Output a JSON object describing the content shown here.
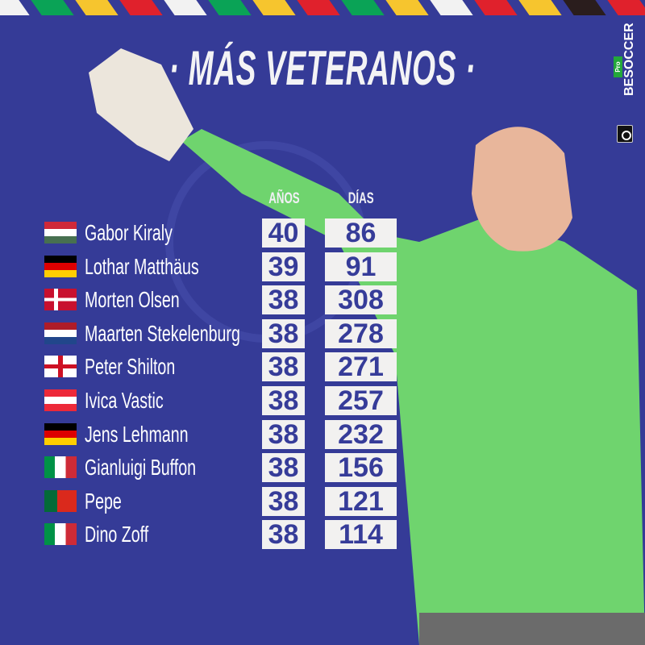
{
  "title": "· MÁS VETERANOS ·",
  "brand": {
    "name": "BESOCCER",
    "tag": "Pro"
  },
  "headers": {
    "years": "AÑOS",
    "days": "DÍAS"
  },
  "colors": {
    "background": "#353b97",
    "box": "#f2f1f0",
    "number": "#363c99",
    "jersey": "#6fd46e"
  },
  "players": [
    {
      "name": "Gabor Kiraly",
      "years": "40",
      "days": "86",
      "flag": "hungary"
    },
    {
      "name": "Lothar Matthäus",
      "years": "39",
      "days": "91",
      "flag": "germany"
    },
    {
      "name": "Morten Olsen",
      "years": "38",
      "days": "308",
      "flag": "denmark"
    },
    {
      "name": "Maarten Stekelenburg",
      "years": "38",
      "days": "278",
      "flag": "netherlands"
    },
    {
      "name": "Peter Shilton",
      "years": "38",
      "days": "271",
      "flag": "england"
    },
    {
      "name": "Ivica Vastic",
      "years": "38",
      "days": "257",
      "flag": "austria"
    },
    {
      "name": "Jens Lehmann",
      "years": "38",
      "days": "232",
      "flag": "germany"
    },
    {
      "name": "Gianluigi Buffon",
      "years": "38",
      "days": "156",
      "flag": "italy"
    },
    {
      "name": "Pepe",
      "years": "38",
      "days": "121",
      "flag": "portugal"
    },
    {
      "name": "Dino Zoff",
      "years": "38",
      "days": "114",
      "flag": "italy"
    }
  ]
}
